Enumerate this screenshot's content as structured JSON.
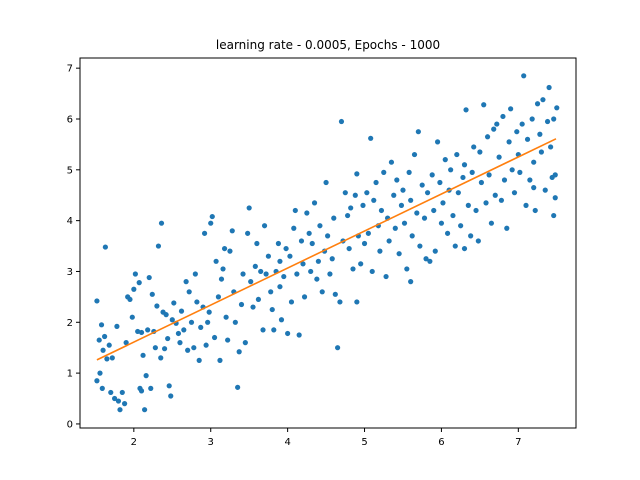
{
  "chart_data": {
    "type": "scatter",
    "title": "learning rate - 0.0005, Epochs - 1000",
    "xlabel": "",
    "ylabel": "",
    "xlim": [
      1.3,
      7.75
    ],
    "ylim": [
      -0.08,
      7.2
    ],
    "xticks": [
      2,
      3,
      4,
      5,
      6,
      7
    ],
    "yticks": [
      0,
      1,
      2,
      3,
      4,
      5,
      6,
      7
    ],
    "grid": false,
    "legend": "none",
    "colors": {
      "points": "#1f77b4",
      "line": "#ff7f0e"
    },
    "series": [
      {
        "type": "scatter",
        "points": [
          [
            1.52,
            2.42
          ],
          [
            1.55,
            1.65
          ],
          [
            1.58,
            1.95
          ],
          [
            1.6,
            1.45
          ],
          [
            1.62,
            1.72
          ],
          [
            1.63,
            3.48
          ],
          [
            1.65,
            1.28
          ],
          [
            1.68,
            1.55
          ],
          [
            1.52,
            0.85
          ],
          [
            1.56,
            1.0
          ],
          [
            1.59,
            0.7
          ],
          [
            1.7,
            0.62
          ],
          [
            1.72,
            1.3
          ],
          [
            1.75,
            0.5
          ],
          [
            1.78,
            1.92
          ],
          [
            1.8,
            0.45
          ],
          [
            1.82,
            0.28
          ],
          [
            1.85,
            0.62
          ],
          [
            1.88,
            0.4
          ],
          [
            1.9,
            1.6
          ],
          [
            1.92,
            2.5
          ],
          [
            1.95,
            2.45
          ],
          [
            1.98,
            2.1
          ],
          [
            2.0,
            2.65
          ],
          [
            2.02,
            2.95
          ],
          [
            2.05,
            1.82
          ],
          [
            2.07,
            2.78
          ],
          [
            2.08,
            0.7
          ],
          [
            2.1,
            0.65
          ],
          [
            2.12,
            1.35
          ],
          [
            2.14,
            0.28
          ],
          [
            2.16,
            0.95
          ],
          [
            2.18,
            1.85
          ],
          [
            2.2,
            2.88
          ],
          [
            2.22,
            0.7
          ],
          [
            2.24,
            2.55
          ],
          [
            2.26,
            1.82
          ],
          [
            2.28,
            1.5
          ],
          [
            2.3,
            2.32
          ],
          [
            2.32,
            3.5
          ],
          [
            2.35,
            1.3
          ],
          [
            2.36,
            3.95
          ],
          [
            2.38,
            2.2
          ],
          [
            2.4,
            1.48
          ],
          [
            2.42,
            2.15
          ],
          [
            2.44,
            1.68
          ],
          [
            2.46,
            0.75
          ],
          [
            2.48,
            0.55
          ],
          [
            2.5,
            2.05
          ],
          [
            2.52,
            2.38
          ],
          [
            2.55,
            1.98
          ],
          [
            2.58,
            1.78
          ],
          [
            2.6,
            1.6
          ],
          [
            2.62,
            2.22
          ],
          [
            2.65,
            1.85
          ],
          [
            2.68,
            2.8
          ],
          [
            2.7,
            1.45
          ],
          [
            2.72,
            2.6
          ],
          [
            2.75,
            2.0
          ],
          [
            2.78,
            1.5
          ],
          [
            2.8,
            2.95
          ],
          [
            2.82,
            2.4
          ],
          [
            2.85,
            1.25
          ],
          [
            2.87,
            1.9
          ],
          [
            2.9,
            2.3
          ],
          [
            2.92,
            3.75
          ],
          [
            2.94,
            1.55
          ],
          [
            2.96,
            2.0
          ],
          [
            2.98,
            2.2
          ],
          [
            3.0,
            3.95
          ],
          [
            3.02,
            4.08
          ],
          [
            3.05,
            1.7
          ],
          [
            3.07,
            3.2
          ],
          [
            3.1,
            2.5
          ],
          [
            3.12,
            1.25
          ],
          [
            3.14,
            2.85
          ],
          [
            3.16,
            3.05
          ],
          [
            3.18,
            3.45
          ],
          [
            3.2,
            2.1
          ],
          [
            3.22,
            1.65
          ],
          [
            3.25,
            3.4
          ],
          [
            3.28,
            3.8
          ],
          [
            3.3,
            2.6
          ],
          [
            3.32,
            2.0
          ],
          [
            3.35,
            0.72
          ],
          [
            3.37,
            1.42
          ],
          [
            3.4,
            2.35
          ],
          [
            3.42,
            2.95
          ],
          [
            3.45,
            1.6
          ],
          [
            3.48,
            3.75
          ],
          [
            3.5,
            4.25
          ],
          [
            3.52,
            2.8
          ],
          [
            3.55,
            2.3
          ],
          [
            3.58,
            3.1
          ],
          [
            3.6,
            3.55
          ],
          [
            3.62,
            2.45
          ],
          [
            3.65,
            3.0
          ],
          [
            3.68,
            1.85
          ],
          [
            3.7,
            3.9
          ],
          [
            3.72,
            2.95
          ],
          [
            3.75,
            3.3
          ],
          [
            3.78,
            2.6
          ],
          [
            3.8,
            2.25
          ],
          [
            3.82,
            1.85
          ],
          [
            3.85,
            3.0
          ],
          [
            3.88,
            3.55
          ],
          [
            3.9,
            3.2
          ],
          [
            3.92,
            2.05
          ],
          [
            3.95,
            2.9
          ],
          [
            3.98,
            3.45
          ],
          [
            4.0,
            1.78
          ],
          [
            4.03,
            3.3
          ],
          [
            4.05,
            2.4
          ],
          [
            4.08,
            3.85
          ],
          [
            4.1,
            4.2
          ],
          [
            4.12,
            2.95
          ],
          [
            4.15,
            1.75
          ],
          [
            4.18,
            3.6
          ],
          [
            4.2,
            3.15
          ],
          [
            4.22,
            2.5
          ],
          [
            4.25,
            4.15
          ],
          [
            4.28,
            3.75
          ],
          [
            4.3,
            3.0
          ],
          [
            4.32,
            3.55
          ],
          [
            4.35,
            4.35
          ],
          [
            4.38,
            2.85
          ],
          [
            4.4,
            3.2
          ],
          [
            4.42,
            3.9
          ],
          [
            4.45,
            2.6
          ],
          [
            4.48,
            3.4
          ],
          [
            4.5,
            4.75
          ],
          [
            4.52,
            3.7
          ],
          [
            4.55,
            2.95
          ],
          [
            4.58,
            3.25
          ],
          [
            4.6,
            4.05
          ],
          [
            4.62,
            2.55
          ],
          [
            4.65,
            1.5
          ],
          [
            4.68,
            2.4
          ],
          [
            4.7,
            5.95
          ],
          [
            4.72,
            3.6
          ],
          [
            4.75,
            4.55
          ],
          [
            4.78,
            4.1
          ],
          [
            4.8,
            3.45
          ],
          [
            4.82,
            4.25
          ],
          [
            4.85,
            3.05
          ],
          [
            4.88,
            4.5
          ],
          [
            4.9,
            4.92
          ],
          [
            4.92,
            3.7
          ],
          [
            4.95,
            3.15
          ],
          [
            4.98,
            4.3
          ],
          [
            5.0,
            3.55
          ],
          [
            5.03,
            4.55
          ],
          [
            5.05,
            3.75
          ],
          [
            5.08,
            5.62
          ],
          [
            5.1,
            3.0
          ],
          [
            5.12,
            4.4
          ],
          [
            5.15,
            4.75
          ],
          [
            5.18,
            3.9
          ],
          [
            5.2,
            3.4
          ],
          [
            5.22,
            4.2
          ],
          [
            5.25,
            4.95
          ],
          [
            5.28,
            2.9
          ],
          [
            5.3,
            4.05
          ],
          [
            5.32,
            3.6
          ],
          [
            5.35,
            5.15
          ],
          [
            5.38,
            4.5
          ],
          [
            5.4,
            3.85
          ],
          [
            5.42,
            4.8
          ],
          [
            5.45,
            3.35
          ],
          [
            5.48,
            4.3
          ],
          [
            5.5,
            4.6
          ],
          [
            5.52,
            3.95
          ],
          [
            5.55,
            3.05
          ],
          [
            5.58,
            4.95
          ],
          [
            5.6,
            4.4
          ],
          [
            5.62,
            3.7
          ],
          [
            5.65,
            5.3
          ],
          [
            5.68,
            4.15
          ],
          [
            5.7,
            5.75
          ],
          [
            5.72,
            3.5
          ],
          [
            5.75,
            4.7
          ],
          [
            5.78,
            4.05
          ],
          [
            5.8,
            3.25
          ],
          [
            5.82,
            4.55
          ],
          [
            5.85,
            3.2
          ],
          [
            5.88,
            4.9
          ],
          [
            5.9,
            4.2
          ],
          [
            5.92,
            3.4
          ],
          [
            5.95,
            5.55
          ],
          [
            5.98,
            4.75
          ],
          [
            6.0,
            3.95
          ],
          [
            6.02,
            4.35
          ],
          [
            6.05,
            5.2
          ],
          [
            6.08,
            3.75
          ],
          [
            6.1,
            4.6
          ],
          [
            6.12,
            5.0
          ],
          [
            6.15,
            4.1
          ],
          [
            6.18,
            3.5
          ],
          [
            6.2,
            5.3
          ],
          [
            6.22,
            4.55
          ],
          [
            6.25,
            3.9
          ],
          [
            6.28,
            4.85
          ],
          [
            6.3,
            5.1
          ],
          [
            6.32,
            6.18
          ],
          [
            6.35,
            4.3
          ],
          [
            6.38,
            3.7
          ],
          [
            6.4,
            4.95
          ],
          [
            6.42,
            5.45
          ],
          [
            6.45,
            4.2
          ],
          [
            6.48,
            3.6
          ],
          [
            6.5,
            5.35
          ],
          [
            6.52,
            4.75
          ],
          [
            6.55,
            6.28
          ],
          [
            6.58,
            4.35
          ],
          [
            6.6,
            5.65
          ],
          [
            6.62,
            4.9
          ],
          [
            6.65,
            3.95
          ],
          [
            6.68,
            5.8
          ],
          [
            6.7,
            4.5
          ],
          [
            6.72,
            5.9
          ],
          [
            6.75,
            5.25
          ],
          [
            6.78,
            4.4
          ],
          [
            6.8,
            6.05
          ],
          [
            6.82,
            4.8
          ],
          [
            6.85,
            3.85
          ],
          [
            6.88,
            5.55
          ],
          [
            6.9,
            6.2
          ],
          [
            6.92,
            5.0
          ],
          [
            6.95,
            4.55
          ],
          [
            6.98,
            5.75
          ],
          [
            7.0,
            5.3
          ],
          [
            7.02,
            4.95
          ],
          [
            7.05,
            5.9
          ],
          [
            7.07,
            6.85
          ],
          [
            7.1,
            4.3
          ],
          [
            7.12,
            5.6
          ],
          [
            7.15,
            4.8
          ],
          [
            7.18,
            6.0
          ],
          [
            7.2,
            5.15
          ],
          [
            7.22,
            4.2
          ],
          [
            7.25,
            6.3
          ],
          [
            7.28,
            5.7
          ],
          [
            7.3,
            5.35
          ],
          [
            7.32,
            6.38
          ],
          [
            7.35,
            4.6
          ],
          [
            7.38,
            5.95
          ],
          [
            7.4,
            6.62
          ],
          [
            7.42,
            5.45
          ],
          [
            7.44,
            4.85
          ],
          [
            7.46,
            6.0
          ],
          [
            7.48,
            4.9
          ],
          [
            7.5,
            6.22
          ],
          [
            7.46,
            4.1
          ],
          [
            7.48,
            4.45
          ],
          [
            7.2,
            4.65
          ],
          [
            6.3,
            3.45
          ],
          [
            5.6,
            2.8
          ],
          [
            4.9,
            2.4
          ],
          [
            3.9,
            2.7
          ],
          [
            2.1,
            1.8
          ]
        ]
      },
      {
        "type": "line",
        "points": [
          [
            1.52,
            1.26
          ],
          [
            7.49,
            5.61
          ]
        ]
      }
    ]
  }
}
